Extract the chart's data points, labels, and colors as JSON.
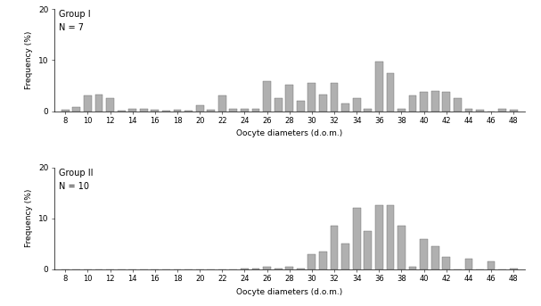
{
  "group1_label": "Group I",
  "group1_n": "N = 7",
  "group2_label": "Group II",
  "group2_n": "N = 10",
  "xlabel": "Oocyte diameters (d.o.m.)",
  "ylabel": "Frequency (%)",
  "bar_color": "#b0b0b0",
  "bar_edge_color": "#666666",
  "ylim1": [
    0,
    20
  ],
  "ylim2": [
    0,
    20
  ],
  "yticks": [
    0,
    10,
    20
  ],
  "xticks": [
    8,
    10,
    12,
    14,
    16,
    18,
    20,
    22,
    24,
    26,
    28,
    30,
    32,
    34,
    36,
    38,
    40,
    42,
    44,
    46,
    48
  ],
  "categories": [
    8,
    9,
    10,
    11,
    12,
    13,
    14,
    15,
    16,
    17,
    18,
    19,
    20,
    21,
    22,
    23,
    24,
    25,
    26,
    27,
    28,
    29,
    30,
    31,
    32,
    33,
    34,
    35,
    36,
    37,
    38,
    39,
    40,
    41,
    42,
    43,
    44,
    45,
    46,
    47,
    48
  ],
  "group1_values": [
    0.3,
    0.8,
    3.0,
    3.3,
    2.6,
    0.1,
    0.5,
    0.5,
    0.3,
    0.1,
    0.2,
    0.1,
    1.2,
    0.2,
    3.0,
    0.5,
    0.5,
    0.4,
    5.8,
    2.5,
    5.2,
    2.0,
    5.5,
    3.2,
    5.5,
    1.5,
    2.5,
    0.5,
    9.8,
    7.5,
    0.5,
    3.0,
    3.8,
    4.0,
    3.8,
    2.5,
    0.5,
    0.2,
    0.0,
    0.5,
    0.2
  ],
  "group2_values": [
    0.0,
    0.0,
    0.0,
    0.0,
    0.0,
    0.0,
    0.0,
    0.0,
    0.0,
    0.0,
    0.0,
    0.0,
    0.0,
    0.0,
    0.0,
    0.0,
    0.2,
    0.1,
    0.5,
    0.2,
    0.5,
    0.1,
    3.0,
    3.5,
    8.5,
    5.0,
    12.0,
    7.5,
    12.5,
    12.5,
    8.5,
    0.5,
    6.0,
    4.5,
    2.5,
    0.0,
    2.0,
    0.0,
    1.5,
    0.0,
    0.2
  ]
}
